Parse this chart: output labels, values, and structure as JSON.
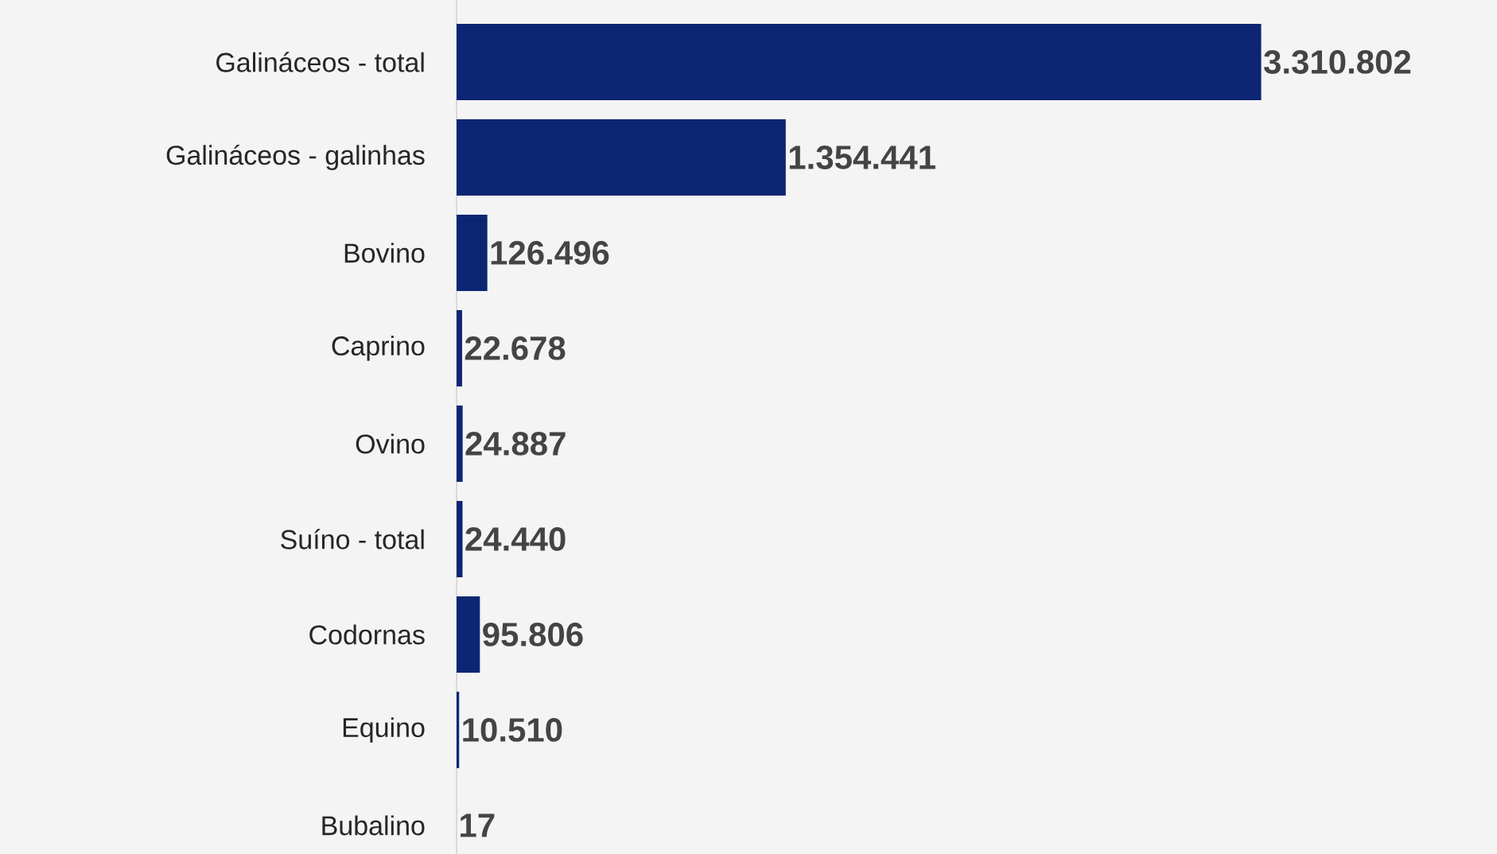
{
  "chart_data": {
    "type": "bar",
    "orientation": "horizontal",
    "color": "#0d2673",
    "categories": [
      "Galináceos - total",
      "Galináceos - galinhas",
      "Bovino",
      "Caprino",
      "Ovino",
      "Suíno - total",
      "Codornas",
      "Equino",
      "Bubalino"
    ],
    "values": [
      3310802,
      1354441,
      126496,
      22678,
      24887,
      24440,
      95806,
      10510,
      17
    ],
    "value_labels": [
      "3.310.802",
      "1.354.441",
      "126.496",
      "22.678",
      "24.887",
      "24.440",
      "95.806",
      "10.510",
      "17"
    ]
  }
}
